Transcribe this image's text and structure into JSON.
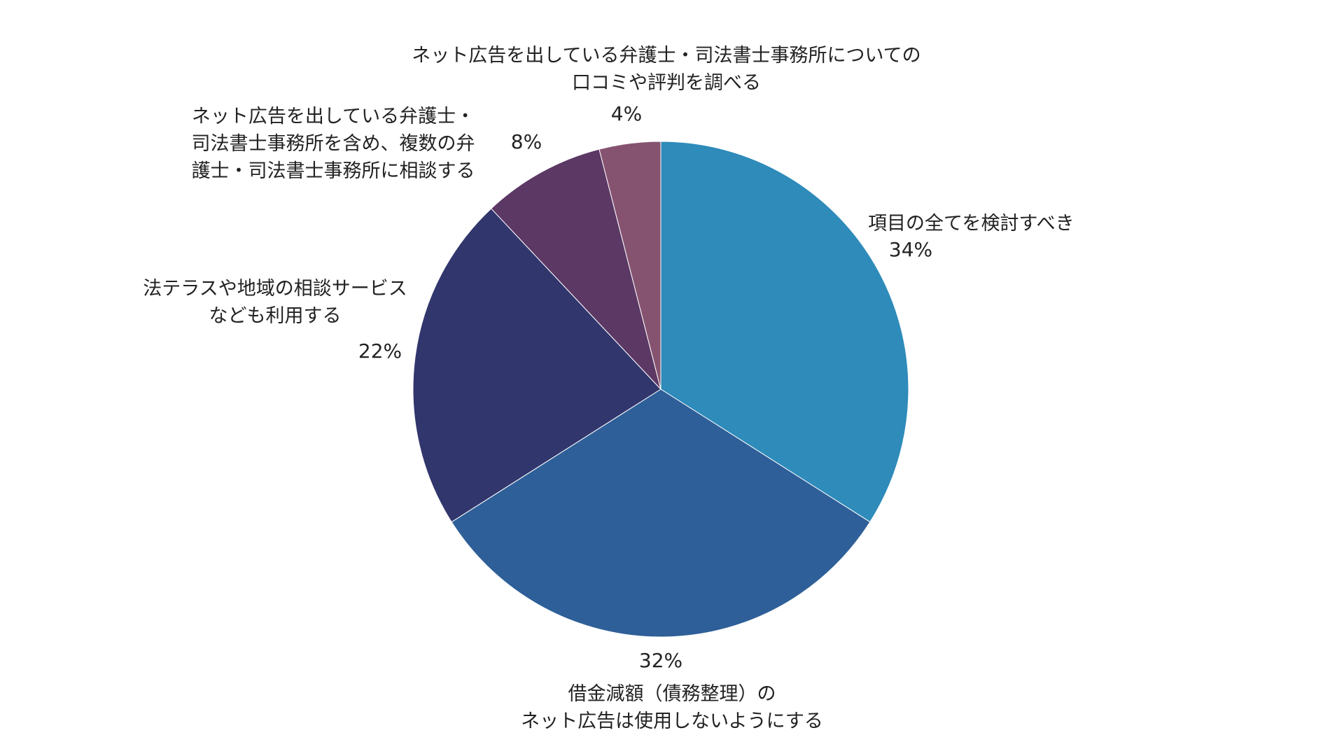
{
  "chart_data": {
    "type": "pie",
    "slices": [
      {
        "label_lines": [
          "項目の全てを検討すべき"
        ],
        "value": 34,
        "value_label": "34%",
        "color": "#2e8bba"
      },
      {
        "label_lines": [
          "借金減額（債務整理）の",
          "ネット広告は使用しないようにする"
        ],
        "value": 32,
        "value_label": "32%",
        "color": "#2e5f98"
      },
      {
        "label_lines": [
          "法テラスや地域の相談サービス",
          "なども利用する"
        ],
        "value": 22,
        "value_label": "22%",
        "color": "#31366d"
      },
      {
        "label_lines": [
          "ネット広告を出している弁護士・",
          "司法書士事務所を含め、複数の弁",
          "護士・司法書士事務所に相談する"
        ],
        "value": 8,
        "value_label": "8%",
        "color": "#5c3865"
      },
      {
        "label_lines": [
          "ネット広告を出している弁護士・司法書士事務所についての",
          "口コミや評判を調べる"
        ],
        "value": 4,
        "value_label": "4%",
        "color": "#855370"
      }
    ]
  }
}
